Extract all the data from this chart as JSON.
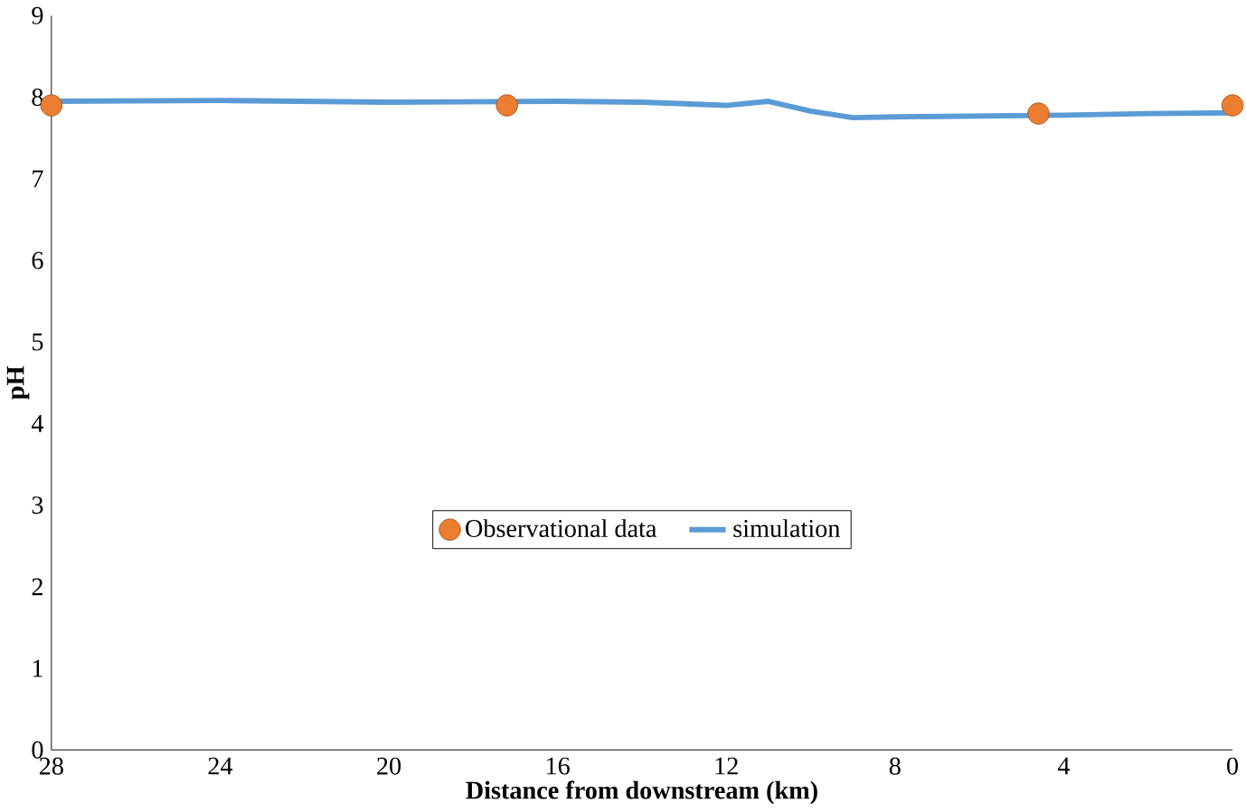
{
  "chart_data": {
    "type": "line",
    "xlabel": "Distance from downstream (km)",
    "ylabel": "pH",
    "xlim": [
      28,
      0
    ],
    "xticks": [
      28,
      24,
      20,
      16,
      12,
      8,
      4,
      0
    ],
    "ylim": [
      0,
      9
    ],
    "yticks": [
      0,
      1,
      2,
      3,
      4,
      5,
      6,
      7,
      8,
      9
    ],
    "legend": "center",
    "grid": false,
    "series": [
      {
        "name": "Observational data",
        "type": "scatter",
        "marker": "circle",
        "color": "#ed7d31",
        "x": [
          28,
          17.2,
          4.6,
          0
        ],
        "values": [
          7.9,
          7.9,
          7.8,
          7.9
        ]
      },
      {
        "name": "simulation",
        "marker": "none",
        "line_style": "solid",
        "color": "#5b9bd5",
        "x": [
          28,
          24,
          20,
          16,
          14,
          12,
          11,
          10,
          9,
          8,
          6,
          4,
          2,
          0
        ],
        "values": [
          7.95,
          7.96,
          7.94,
          7.95,
          7.94,
          7.9,
          7.95,
          7.83,
          7.75,
          7.76,
          7.77,
          7.78,
          7.8,
          7.81
        ]
      }
    ]
  }
}
